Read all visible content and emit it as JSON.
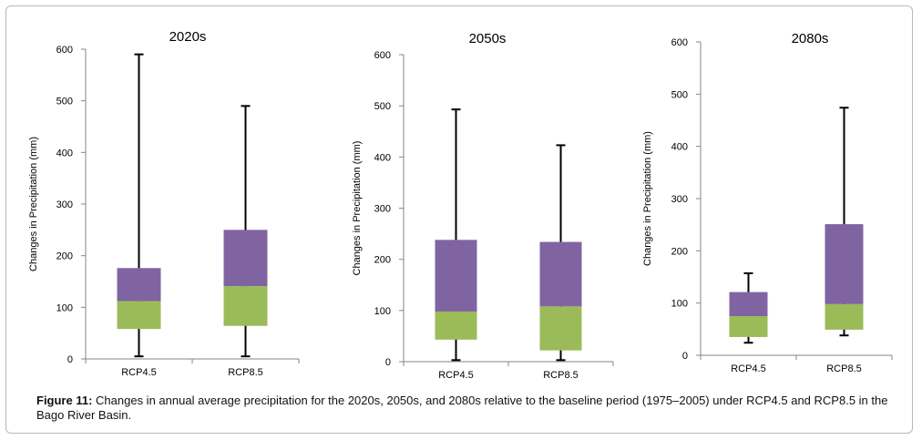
{
  "chart_data": [
    {
      "type": "boxplot",
      "title": "2020s",
      "ylabel": "Changes in Precipitation (mm)",
      "ylim": [
        0,
        600
      ],
      "yticks": [
        "0",
        "100",
        "200",
        "300",
        "400",
        "500",
        "600"
      ],
      "categories": [
        "RCP4.5",
        "RCP8.5"
      ],
      "boxes": [
        {
          "min": 5,
          "q1": 58,
          "median": 112,
          "q3": 176,
          "max": 590
        },
        {
          "min": 5,
          "q1": 64,
          "median": 141,
          "q3": 250,
          "max": 490
        }
      ]
    },
    {
      "type": "boxplot",
      "title": "2050s",
      "ylabel": "Changes in Precipitation  (mm)",
      "ylim": [
        0,
        600
      ],
      "yticks": [
        "0",
        "100",
        "200",
        "300",
        "400",
        "500",
        "600"
      ],
      "categories": [
        "RCP4.5",
        "RCP8.5"
      ],
      "boxes": [
        {
          "min": 3,
          "q1": 43,
          "median": 98,
          "q3": 238,
          "max": 493
        },
        {
          "min": 3,
          "q1": 22,
          "median": 108,
          "q3": 234,
          "max": 423
        }
      ]
    },
    {
      "type": "boxplot",
      "title": "2080s",
      "ylabel": "Changes in Precipitation  (mm)",
      "ylim": [
        0,
        600
      ],
      "yticks": [
        "0",
        "100",
        "200",
        "300",
        "400",
        "500",
        "600"
      ],
      "categories": [
        "RCP4.5",
        "RCP8.5"
      ],
      "boxes": [
        {
          "min": 24,
          "q1": 35,
          "median": 75,
          "q3": 121,
          "max": 157
        },
        {
          "min": 38,
          "q1": 49,
          "median": 98,
          "q3": 251,
          "max": 474
        }
      ]
    }
  ],
  "colors": {
    "lower_box": "#9bbb59",
    "upper_box": "#8064a2",
    "whisker": "#000000",
    "axis": "#868686"
  },
  "caption": {
    "label": "Figure 11:",
    "text": " Changes in annual average precipitation for the 2020s, 2050s, and 2080s relative to the baseline period (1975–2005) under RCP4.5 and RCP8.5 in the Bago River Basin."
  }
}
